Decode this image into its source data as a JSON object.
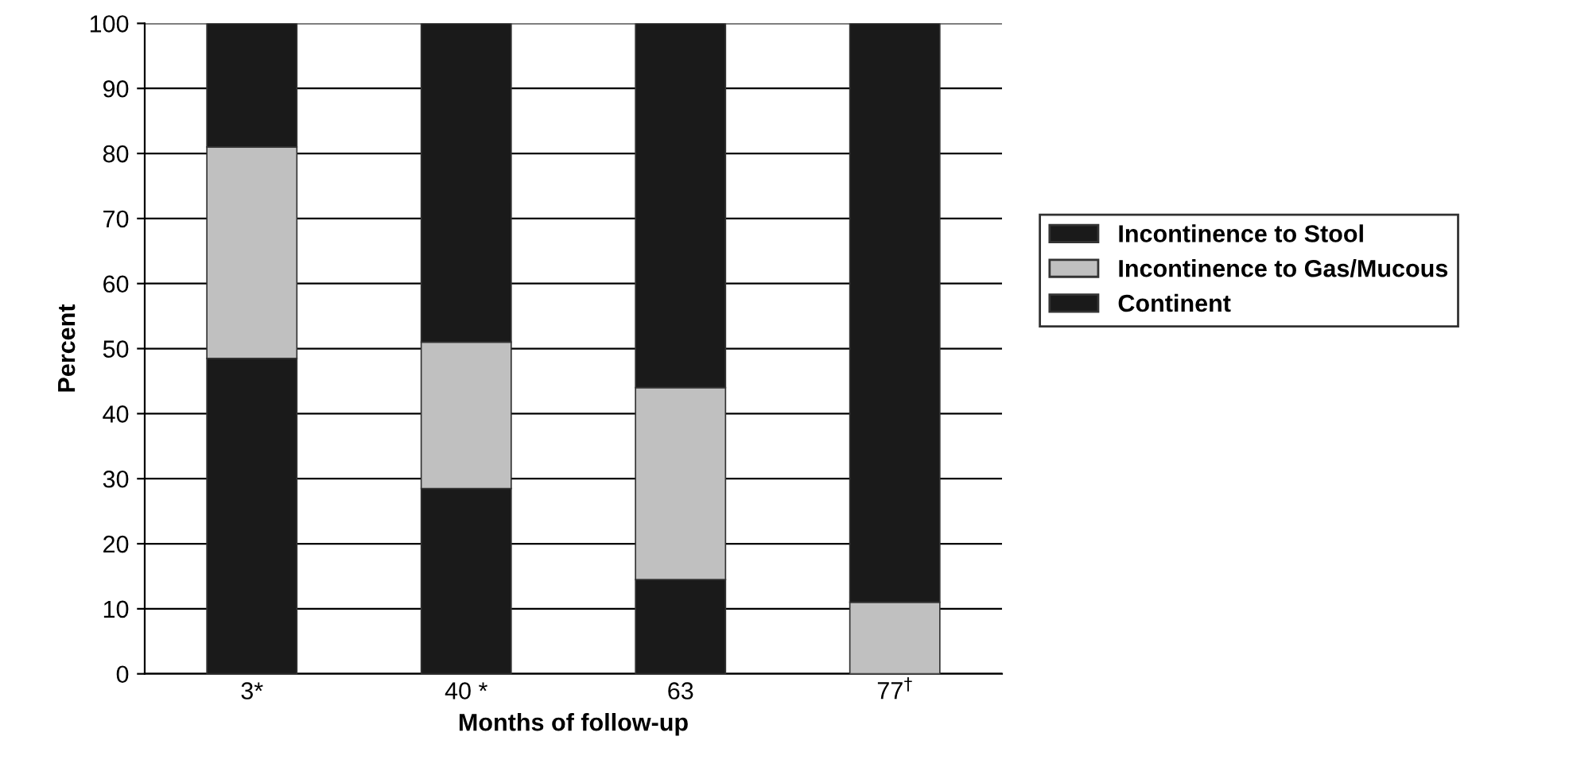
{
  "chart_data": {
    "type": "bar",
    "stacked": true,
    "xlabel": "Months of follow-up",
    "ylabel": "Percent",
    "categories": [
      "3*",
      "40 *",
      "63",
      "77$^{†}$"
    ],
    "series": [
      {
        "name": "Continent",
        "color": "#1a1a1a",
        "values": [
          48.5,
          28.5,
          14.5,
          0
        ]
      },
      {
        "name": "Incontinence to Gas/Mucous",
        "color": "#c0c0c0",
        "values": [
          32.5,
          22.5,
          29.5,
          11
        ]
      },
      {
        "name": "Incontinence to Stool",
        "color": "#1a1a1a",
        "values": [
          19,
          49,
          56,
          89
        ]
      }
    ],
    "ylim": [
      0,
      100
    ],
    "yticks": [
      0,
      10,
      20,
      30,
      40,
      50,
      60,
      70,
      80,
      90,
      100
    ],
    "grid": "y",
    "legend": "right"
  }
}
